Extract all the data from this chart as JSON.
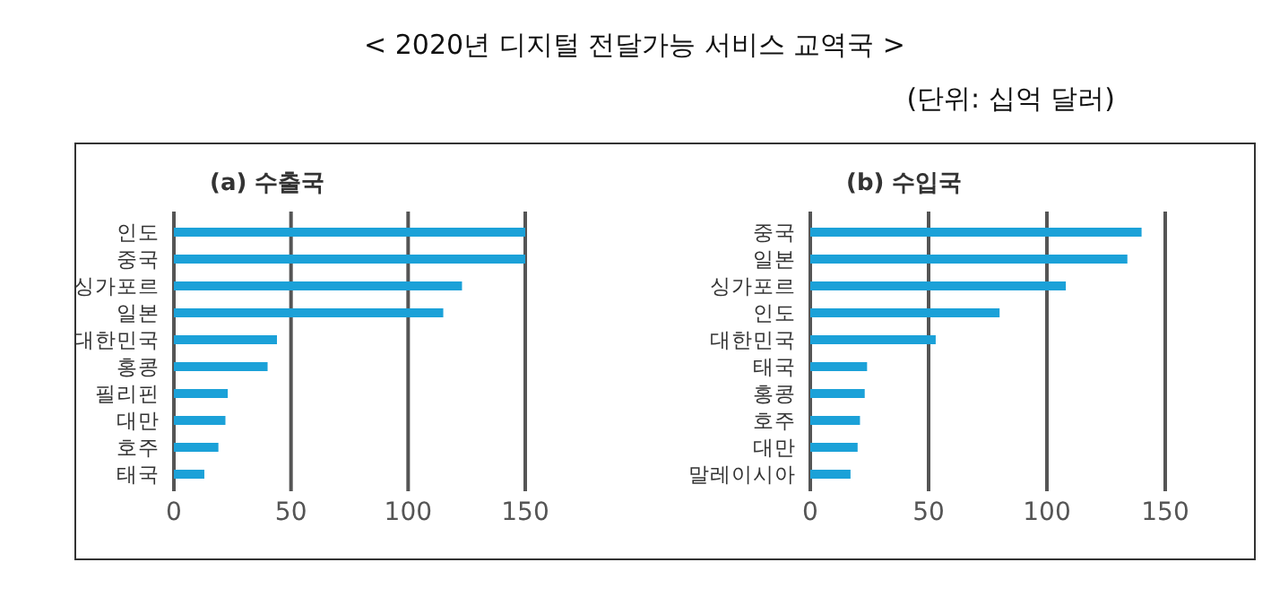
{
  "chart_data": [
    {
      "type": "bar",
      "orientation": "horizontal",
      "title": "(a) 수출국",
      "annotations": [
        "< 2020년 디지털 전달가능 서비스 교역국 >",
        "(단위: 십억 달러)"
      ],
      "categories": [
        "인도",
        "중국",
        "싱가포르",
        "일본",
        "대한민국",
        "홍콩",
        "필리핀",
        "대만",
        "호주",
        "태국"
      ],
      "values": [
        150,
        150,
        123,
        115,
        44,
        40,
        23,
        22,
        19,
        13
      ],
      "color": "#1ba1d8",
      "xlim": [
        0,
        150
      ],
      "xticks": [
        0,
        50,
        100,
        150
      ],
      "grid": "x"
    },
    {
      "type": "bar",
      "orientation": "horizontal",
      "title": "(b) 수입국",
      "categories": [
        "중국",
        "일본",
        "싱가포르",
        "인도",
        "대한민국",
        "태국",
        "홍콩",
        "호주",
        "대만",
        "말레이시아"
      ],
      "values": [
        140,
        134,
        108,
        80,
        53,
        24,
        23,
        21,
        20,
        17
      ],
      "color": "#1ba1d8",
      "xlim": [
        0,
        150
      ],
      "xticks": [
        0,
        50,
        100,
        150
      ],
      "grid": "x"
    }
  ]
}
